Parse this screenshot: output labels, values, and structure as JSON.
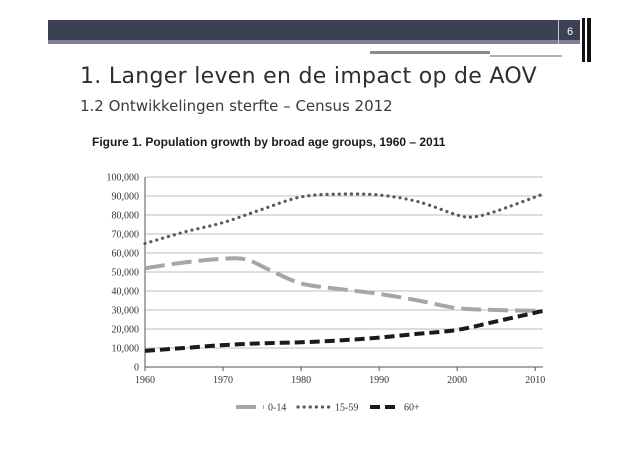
{
  "slide": {
    "page_number": "6",
    "title": "1. Langer leven en de impact op de AOV",
    "subtitle": "1.2 Ontwikkelingen sterfte – Census 2012"
  },
  "chart_data": {
    "type": "line",
    "title": "Figure 1. Population growth by broad age groups, 1960 – 2011",
    "xlabel": "",
    "ylabel": "",
    "xlim": [
      1960,
      2011
    ],
    "ylim": [
      0,
      100000
    ],
    "x_ticks": [
      "1960",
      "1970",
      "1980",
      "1990",
      "2000",
      "2010"
    ],
    "y_ticks": [
      "0",
      "10,000",
      "20,000",
      "30,000",
      "40,000",
      "50,000",
      "60,000",
      "70,000",
      "80,000",
      "90,000",
      "100,000"
    ],
    "grid": true,
    "legend_position": "bottom",
    "series": [
      {
        "name": "0-14",
        "style": "dashed",
        "color": "#a6a6a6",
        "x": [
          1960,
          1965,
          1970,
          1973,
          1976,
          1980,
          1985,
          1990,
          1995,
          2000,
          2005,
          2011
        ],
        "y": [
          52000,
          55000,
          57000,
          56500,
          51000,
          44000,
          41000,
          38500,
          35000,
          31000,
          30000,
          29500
        ]
      },
      {
        "name": "15-59",
        "style": "dotted",
        "color": "#595959",
        "x": [
          1960,
          1965,
          1970,
          1975,
          1980,
          1985,
          1990,
          1995,
          2000,
          2002,
          2005,
          2011
        ],
        "y": [
          65000,
          71000,
          76000,
          83000,
          89500,
          91000,
          90500,
          87000,
          80000,
          79000,
          82000,
          91000
        ]
      },
      {
        "name": "60+",
        "style": "dashed-bold",
        "color": "#1a1a1a",
        "x": [
          1960,
          1965,
          1970,
          1975,
          1980,
          1985,
          1990,
          1995,
          2000,
          2005,
          2011
        ],
        "y": [
          8500,
          10000,
          11500,
          12500,
          13000,
          14000,
          15500,
          17500,
          19500,
          24000,
          29500
        ]
      }
    ]
  }
}
